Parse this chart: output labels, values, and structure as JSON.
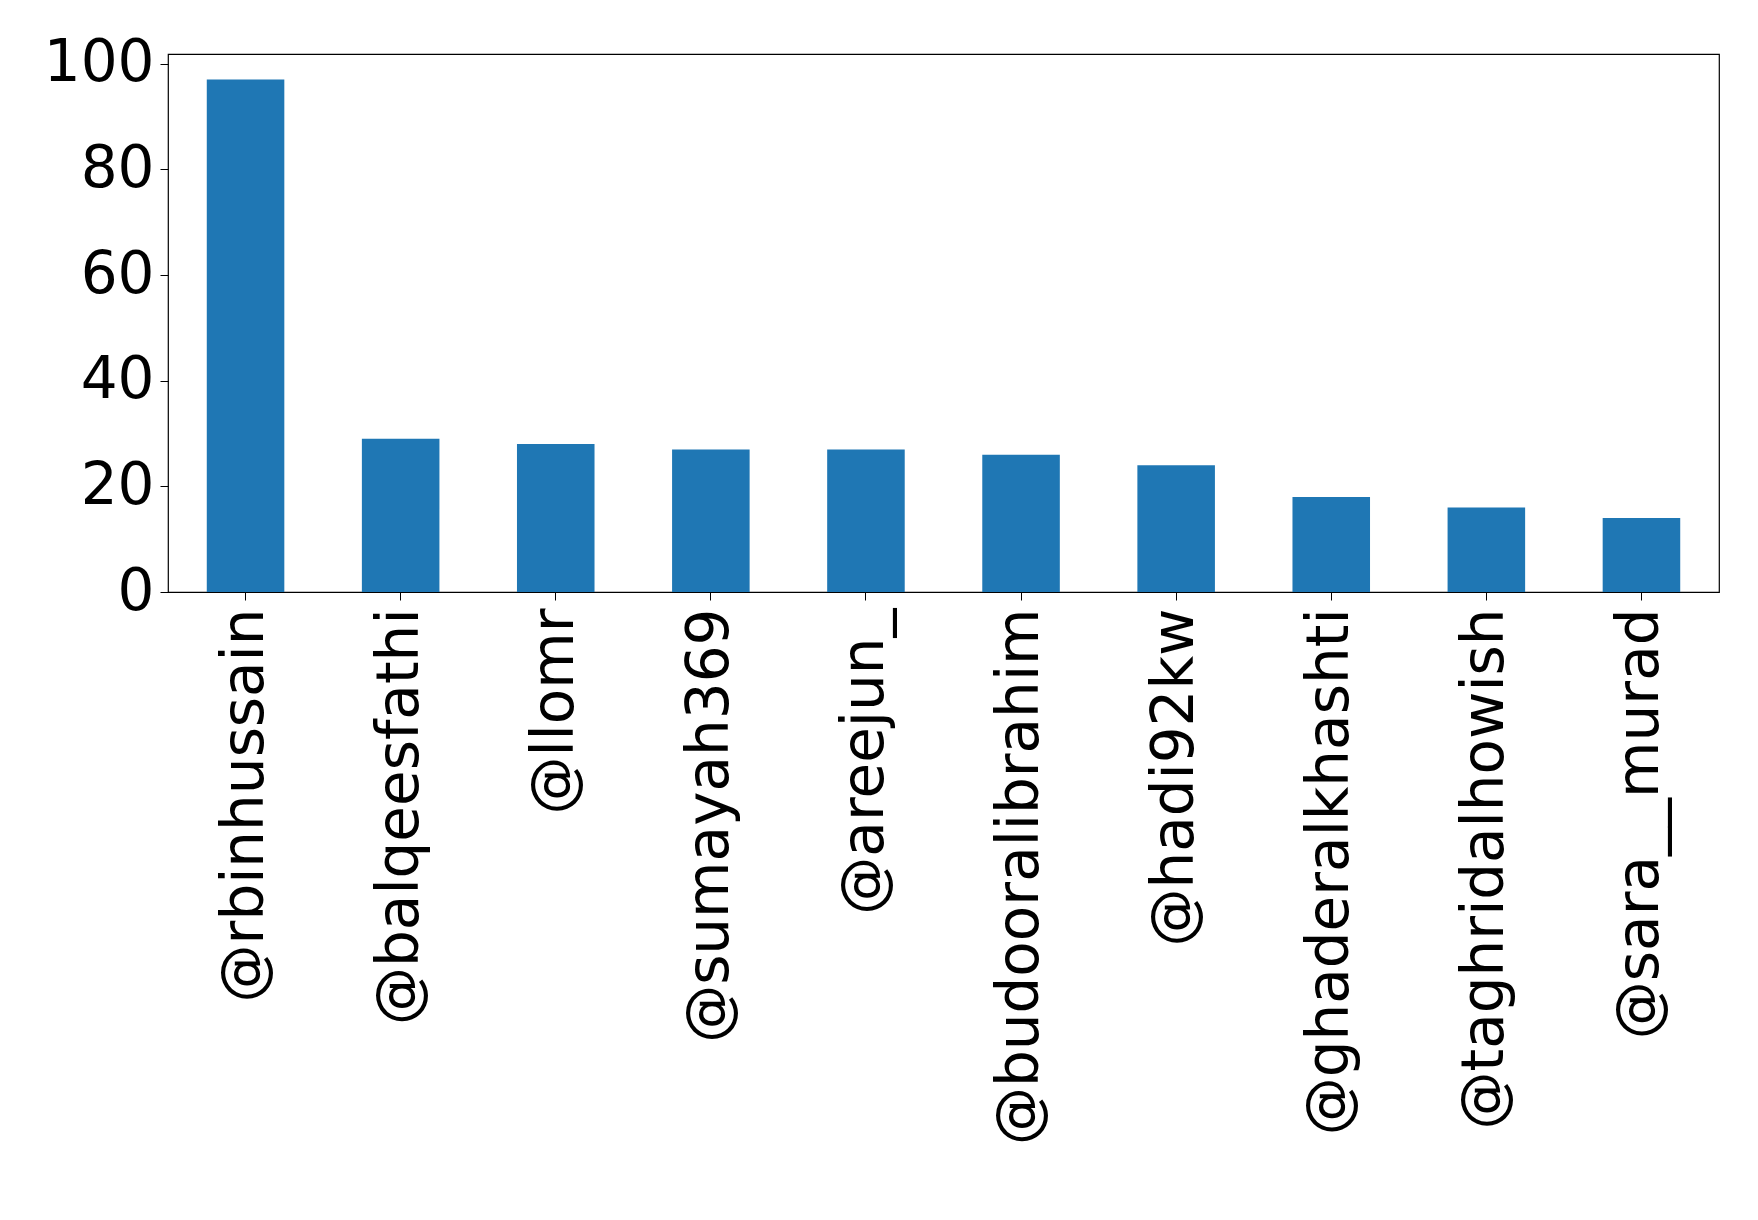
{
  "chart_data": {
    "type": "bar",
    "categories": [
      "@rbinhussain",
      "@balqeesfathi",
      "@llomr",
      "@sumayah369",
      "@areejun_",
      "@budooralibrahim",
      "@hadi92kw",
      "@ghaderalkhashti",
      "@taghridalhowish",
      "@sara__murad"
    ],
    "values": [
      97,
      29,
      28,
      27,
      27,
      26,
      24,
      18,
      16,
      14
    ],
    "color": "#1f77b4",
    "ylim": [
      0,
      101.85
    ],
    "yticks": [
      0,
      20,
      40,
      60,
      80,
      100
    ],
    "grid": false
  }
}
